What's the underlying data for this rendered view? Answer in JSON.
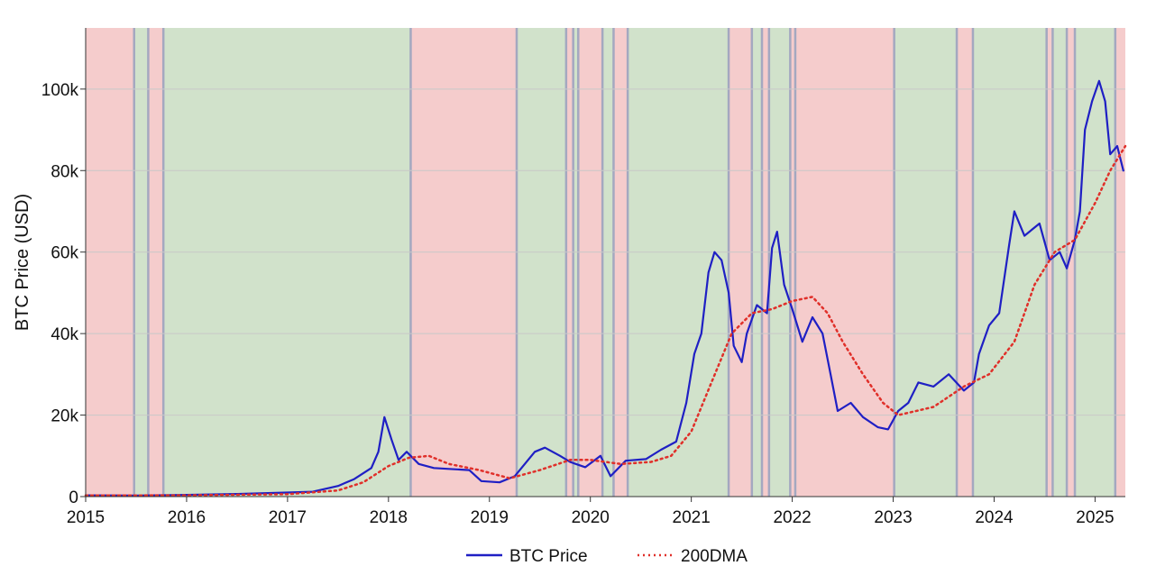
{
  "chart_data": {
    "type": "line",
    "title": "",
    "xlabel": "",
    "ylabel": "BTC Price (USD)",
    "xlim": [
      2015.0,
      2025.3
    ],
    "ylim": [
      0,
      115000
    ],
    "x_ticks": [
      {
        "value": 2015,
        "label": "2015"
      },
      {
        "value": 2016,
        "label": "2016"
      },
      {
        "value": 2017,
        "label": "2017"
      },
      {
        "value": 2018,
        "label": "2018"
      },
      {
        "value": 2019,
        "label": "2019"
      },
      {
        "value": 2020,
        "label": "2020"
      },
      {
        "value": 2021,
        "label": "2021"
      },
      {
        "value": 2022,
        "label": "2022"
      },
      {
        "value": 2023,
        "label": "2023"
      },
      {
        "value": 2024,
        "label": "2024"
      },
      {
        "value": 2025,
        "label": "2025"
      }
    ],
    "y_ticks": [
      {
        "value": 0,
        "label": "0"
      },
      {
        "value": 20000,
        "label": "20k"
      },
      {
        "value": 40000,
        "label": "40k"
      },
      {
        "value": 60000,
        "label": "60k"
      },
      {
        "value": 80000,
        "label": "80k"
      },
      {
        "value": 100000,
        "label": "100k"
      }
    ],
    "grid": true,
    "legend_position": "bottom-center",
    "colors": {
      "bear_regime": "#f5cccc",
      "bull_regime": "#d1e2cb",
      "regime_boundary": "#a4a8c0",
      "btc_line": "#1f1fc4",
      "dma_line": "#e0302a",
      "grid": "#c8c8c8"
    },
    "regimes": [
      {
        "start": 2015.0,
        "end": 2015.48,
        "state": "bear"
      },
      {
        "start": 2015.48,
        "end": 2015.62,
        "state": "bull"
      },
      {
        "start": 2015.62,
        "end": 2015.77,
        "state": "bear"
      },
      {
        "start": 2015.77,
        "end": 2018.22,
        "state": "bull"
      },
      {
        "start": 2018.22,
        "end": 2019.27,
        "state": "bear"
      },
      {
        "start": 2019.27,
        "end": 2019.76,
        "state": "bull"
      },
      {
        "start": 2019.76,
        "end": 2019.83,
        "state": "bear"
      },
      {
        "start": 2019.83,
        "end": 2019.88,
        "state": "bull"
      },
      {
        "start": 2019.88,
        "end": 2020.12,
        "state": "bear"
      },
      {
        "start": 2020.12,
        "end": 2020.23,
        "state": "bull"
      },
      {
        "start": 2020.23,
        "end": 2020.37,
        "state": "bear"
      },
      {
        "start": 2020.37,
        "end": 2021.37,
        "state": "bull"
      },
      {
        "start": 2021.37,
        "end": 2021.6,
        "state": "bear"
      },
      {
        "start": 2021.6,
        "end": 2021.7,
        "state": "bull"
      },
      {
        "start": 2021.7,
        "end": 2021.77,
        "state": "bear"
      },
      {
        "start": 2021.77,
        "end": 2021.98,
        "state": "bull"
      },
      {
        "start": 2021.98,
        "end": 2022.03,
        "state": "bear"
      },
      {
        "start": 2022.03,
        "end": 2023.01,
        "state": "bear"
      },
      {
        "start": 2023.01,
        "end": 2023.63,
        "state": "bull"
      },
      {
        "start": 2023.63,
        "end": 2023.79,
        "state": "bear"
      },
      {
        "start": 2023.79,
        "end": 2024.52,
        "state": "bull"
      },
      {
        "start": 2024.52,
        "end": 2024.58,
        "state": "bear"
      },
      {
        "start": 2024.58,
        "end": 2024.72,
        "state": "bull"
      },
      {
        "start": 2024.72,
        "end": 2024.8,
        "state": "bear"
      },
      {
        "start": 2024.8,
        "end": 2025.2,
        "state": "bull"
      },
      {
        "start": 2025.2,
        "end": 2025.3,
        "state": "bear"
      }
    ],
    "series": [
      {
        "name": "BTC Price",
        "style": "solid",
        "points": [
          [
            2015.0,
            300
          ],
          [
            2015.5,
            260
          ],
          [
            2016.0,
            430
          ],
          [
            2016.5,
            650
          ],
          [
            2017.0,
            1000
          ],
          [
            2017.25,
            1200
          ],
          [
            2017.5,
            2600
          ],
          [
            2017.66,
            4300
          ],
          [
            2017.83,
            7000
          ],
          [
            2017.9,
            11000
          ],
          [
            2017.96,
            19500
          ],
          [
            2018.03,
            14000
          ],
          [
            2018.1,
            9000
          ],
          [
            2018.18,
            11000
          ],
          [
            2018.3,
            8000
          ],
          [
            2018.45,
            7000
          ],
          [
            2018.6,
            6800
          ],
          [
            2018.8,
            6500
          ],
          [
            2018.92,
            3800
          ],
          [
            2019.1,
            3500
          ],
          [
            2019.25,
            5000
          ],
          [
            2019.45,
            11000
          ],
          [
            2019.55,
            12000
          ],
          [
            2019.7,
            10000
          ],
          [
            2019.8,
            8500
          ],
          [
            2019.95,
            7200
          ],
          [
            2020.1,
            10000
          ],
          [
            2020.2,
            5000
          ],
          [
            2020.35,
            8800
          ],
          [
            2020.55,
            9200
          ],
          [
            2020.7,
            11500
          ],
          [
            2020.85,
            13500
          ],
          [
            2020.95,
            23000
          ],
          [
            2021.03,
            35000
          ],
          [
            2021.1,
            40000
          ],
          [
            2021.17,
            55000
          ],
          [
            2021.23,
            60000
          ],
          [
            2021.3,
            58000
          ],
          [
            2021.37,
            50000
          ],
          [
            2021.42,
            37000
          ],
          [
            2021.5,
            33000
          ],
          [
            2021.55,
            40000
          ],
          [
            2021.65,
            47000
          ],
          [
            2021.75,
            45000
          ],
          [
            2021.8,
            61000
          ],
          [
            2021.85,
            65000
          ],
          [
            2021.92,
            52000
          ],
          [
            2022.0,
            46000
          ],
          [
            2022.1,
            38000
          ],
          [
            2022.2,
            44000
          ],
          [
            2022.3,
            40000
          ],
          [
            2022.38,
            30000
          ],
          [
            2022.45,
            21000
          ],
          [
            2022.58,
            23000
          ],
          [
            2022.7,
            19500
          ],
          [
            2022.85,
            17000
          ],
          [
            2022.95,
            16500
          ],
          [
            2023.05,
            21000
          ],
          [
            2023.15,
            23000
          ],
          [
            2023.25,
            28000
          ],
          [
            2023.4,
            27000
          ],
          [
            2023.55,
            30000
          ],
          [
            2023.7,
            26000
          ],
          [
            2023.8,
            28000
          ],
          [
            2023.85,
            35000
          ],
          [
            2023.95,
            42000
          ],
          [
            2024.05,
            45000
          ],
          [
            2024.15,
            62000
          ],
          [
            2024.2,
            70000
          ],
          [
            2024.3,
            64000
          ],
          [
            2024.45,
            67000
          ],
          [
            2024.55,
            58000
          ],
          [
            2024.65,
            60000
          ],
          [
            2024.72,
            56000
          ],
          [
            2024.8,
            63000
          ],
          [
            2024.85,
            70000
          ],
          [
            2024.9,
            90000
          ],
          [
            2024.97,
            97000
          ],
          [
            2025.04,
            102000
          ],
          [
            2025.1,
            97000
          ],
          [
            2025.15,
            84000
          ],
          [
            2025.22,
            86000
          ],
          [
            2025.28,
            80000
          ]
        ]
      },
      {
        "name": "200DMA",
        "style": "dotted",
        "points": [
          [
            2015.0,
            260
          ],
          [
            2016.0,
            300
          ],
          [
            2017.0,
            600
          ],
          [
            2017.5,
            1500
          ],
          [
            2017.75,
            3500
          ],
          [
            2018.0,
            7500
          ],
          [
            2018.2,
            9500
          ],
          [
            2018.4,
            10000
          ],
          [
            2018.6,
            8000
          ],
          [
            2018.9,
            6500
          ],
          [
            2019.2,
            4500
          ],
          [
            2019.5,
            6500
          ],
          [
            2019.8,
            9000
          ],
          [
            2020.0,
            9000
          ],
          [
            2020.3,
            8000
          ],
          [
            2020.6,
            8500
          ],
          [
            2020.8,
            10000
          ],
          [
            2021.0,
            16000
          ],
          [
            2021.2,
            28000
          ],
          [
            2021.4,
            40000
          ],
          [
            2021.6,
            45000
          ],
          [
            2021.8,
            46000
          ],
          [
            2022.0,
            48000
          ],
          [
            2022.2,
            49000
          ],
          [
            2022.35,
            45000
          ],
          [
            2022.5,
            38000
          ],
          [
            2022.7,
            30000
          ],
          [
            2022.9,
            23000
          ],
          [
            2023.05,
            20000
          ],
          [
            2023.4,
            22000
          ],
          [
            2023.7,
            27000
          ],
          [
            2023.95,
            30000
          ],
          [
            2024.2,
            38000
          ],
          [
            2024.4,
            52000
          ],
          [
            2024.6,
            60000
          ],
          [
            2024.8,
            63000
          ],
          [
            2025.0,
            72000
          ],
          [
            2025.15,
            80000
          ],
          [
            2025.3,
            86000
          ]
        ]
      }
    ],
    "legend": [
      {
        "label": "BTC Price",
        "style": "solid"
      },
      {
        "label": "200DMA",
        "style": "dotted"
      }
    ]
  }
}
